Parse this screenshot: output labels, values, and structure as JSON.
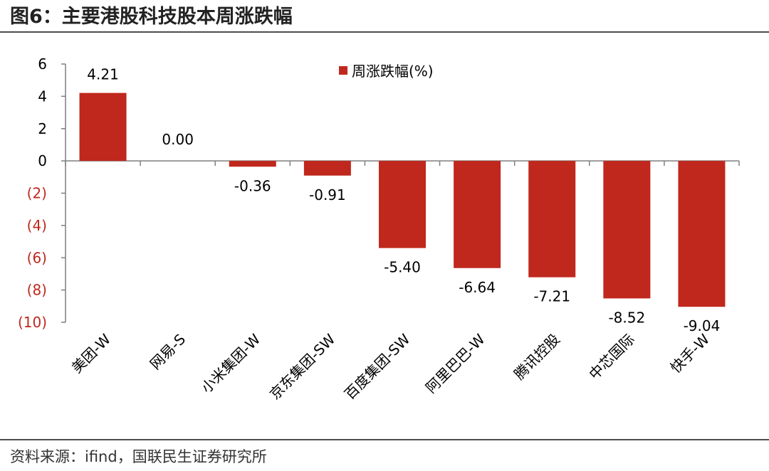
{
  "figure": {
    "title": "图6：主要港股科技股本周涨跌幅",
    "source": "资料来源：ifind，国联民生证券研究所"
  },
  "colors": {
    "bar": "#c0281d",
    "negative_tick": "#c0281d",
    "axis": "#7f7f7f"
  },
  "chart_data": {
    "type": "bar",
    "title": "",
    "xlabel": "",
    "ylabel": "",
    "categories": [
      "美团-W",
      "网易-S",
      "小米集团-W",
      "京东集团-SW",
      "百度集团-SW",
      "阿里巴巴-W",
      "腾讯控股",
      "中芯国际",
      "快手-W"
    ],
    "series": [
      {
        "name": "周涨跌幅(%)",
        "values": [
          4.21,
          0.0,
          -0.36,
          -0.91,
          -5.4,
          -6.64,
          -7.21,
          -8.52,
          -9.04
        ]
      }
    ],
    "data_labels": [
      "4.21",
      "0.00",
      "-0.36",
      "-0.91",
      "-5.40",
      "-6.64",
      "-7.21",
      "-8.52",
      "-9.04"
    ],
    "ylim": [
      -10,
      6
    ],
    "yticks": [
      6,
      4,
      2,
      0,
      -2,
      -4,
      -6,
      -8,
      -10
    ],
    "ytick_labels": [
      "6",
      "4",
      "2",
      "0",
      "(2)",
      "(4)",
      "(6)",
      "(8)",
      "(10)"
    ],
    "legend": {
      "label": "周涨跌幅(%)",
      "position": "top-center"
    },
    "grid": false
  }
}
